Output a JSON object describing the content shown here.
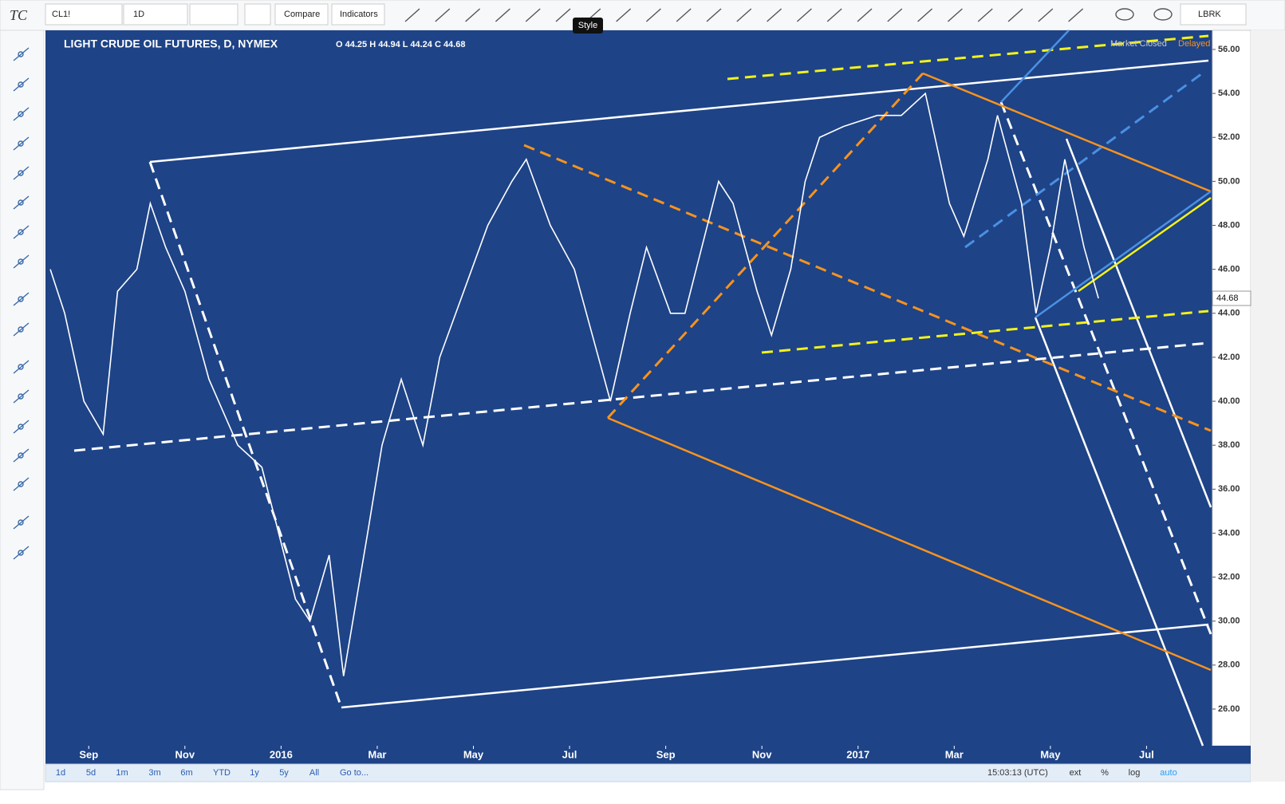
{
  "toolbar": {
    "logo": "TC",
    "symbol": "CL1!",
    "interval": "1D",
    "compare": "Compare",
    "indicators": "Indicators",
    "tooltip": "Style",
    "account": "LBRK"
  },
  "chart_data": {
    "type": "line",
    "title": "LIGHT CRUDE OIL FUTURES, D, NYMEX",
    "ohlc": "O 44.25 H 44.94 L 44.24 C 44.68",
    "status": "Market Closed",
    "feed": "Delayed",
    "last_price": 44.68,
    "x": [
      -0.8,
      -0.5,
      -0.3,
      -0.1,
      0.3,
      0.6,
      1.0,
      1.28,
      1.6,
      2.0,
      2.5,
      3.1,
      3.6,
      4.3,
      4.6,
      5.0,
      5.3,
      5.8,
      6.1,
      6.5,
      6.95,
      7.3,
      7.8,
      8.3,
      8.8,
      9.1,
      9.6,
      10.1,
      10.6,
      10.85,
      11.26,
      11.6,
      12.1,
      12.4,
      12.75,
      13.1,
      13.4,
      13.9,
      14.2,
      14.6,
      14.9,
      15.2,
      15.7,
      16.4,
      16.9,
      17.4,
      17.9,
      18.2,
      18.7,
      18.9,
      19.4,
      19.7,
      20.0,
      20.3,
      20.7,
      21.0
    ],
    "series": [
      {
        "color": "#ffffff",
        "values": [
          46,
          44,
          42,
          40,
          38.5,
          45,
          46,
          49,
          47,
          45,
          41,
          38,
          37,
          31,
          30,
          33,
          27.5,
          34,
          38,
          41,
          38,
          42,
          45,
          48,
          50,
          51,
          48,
          46,
          42,
          40,
          44,
          47,
          44,
          44,
          47,
          50,
          49,
          45,
          43,
          46,
          50,
          52,
          52.5,
          53,
          53,
          54,
          49,
          47.5,
          51,
          53,
          49,
          44,
          47,
          51,
          47,
          44.68
        ]
      }
    ],
    "xlim": [
      -0.9,
      23.37
    ],
    "xticks": [
      {
        "value": 0,
        "label": "Sep"
      },
      {
        "value": 2,
        "label": "Nov"
      },
      {
        "value": 4,
        "label": "2016"
      },
      {
        "value": 6,
        "label": "Mar"
      },
      {
        "value": 8,
        "label": "May"
      },
      {
        "value": 10,
        "label": "Jul"
      },
      {
        "value": 12,
        "label": "Sep"
      },
      {
        "value": 14,
        "label": "Nov"
      },
      {
        "value": 16,
        "label": "2017"
      },
      {
        "value": 18,
        "label": "Mar"
      },
      {
        "value": 20,
        "label": "May"
      },
      {
        "value": 22,
        "label": "Jul"
      }
    ],
    "ylim": [
      24.33,
      56.87
    ],
    "yticks": [
      {
        "value": 26,
        "label": "26.00"
      },
      {
        "value": 28,
        "label": "28.00"
      },
      {
        "value": 30,
        "label": "30.00"
      },
      {
        "value": 32,
        "label": "32.00"
      },
      {
        "value": 34,
        "label": "34.00"
      },
      {
        "value": 36,
        "label": "36.00"
      },
      {
        "value": 38,
        "label": "38.00"
      },
      {
        "value": 40,
        "label": "40.00"
      },
      {
        "value": 42,
        "label": "42.00"
      },
      {
        "value": 44,
        "label": "44.00"
      },
      {
        "value": 46,
        "label": "46.00"
      },
      {
        "value": 48,
        "label": "48.00"
      },
      {
        "value": 50,
        "label": "50.00"
      },
      {
        "value": 52,
        "label": "52.00"
      },
      {
        "value": 54,
        "label": "54.00"
      },
      {
        "value": 56,
        "label": "56.00"
      }
    ]
  },
  "bottom_bar": {
    "ranges": [
      "1d",
      "5d",
      "1m",
      "3m",
      "6m",
      "YTD",
      "1y",
      "5y",
      "All"
    ],
    "goto": "Go to...",
    "time": "15:03:13 (UTC)",
    "options": [
      "ext",
      "%",
      "log",
      "auto"
    ]
  }
}
